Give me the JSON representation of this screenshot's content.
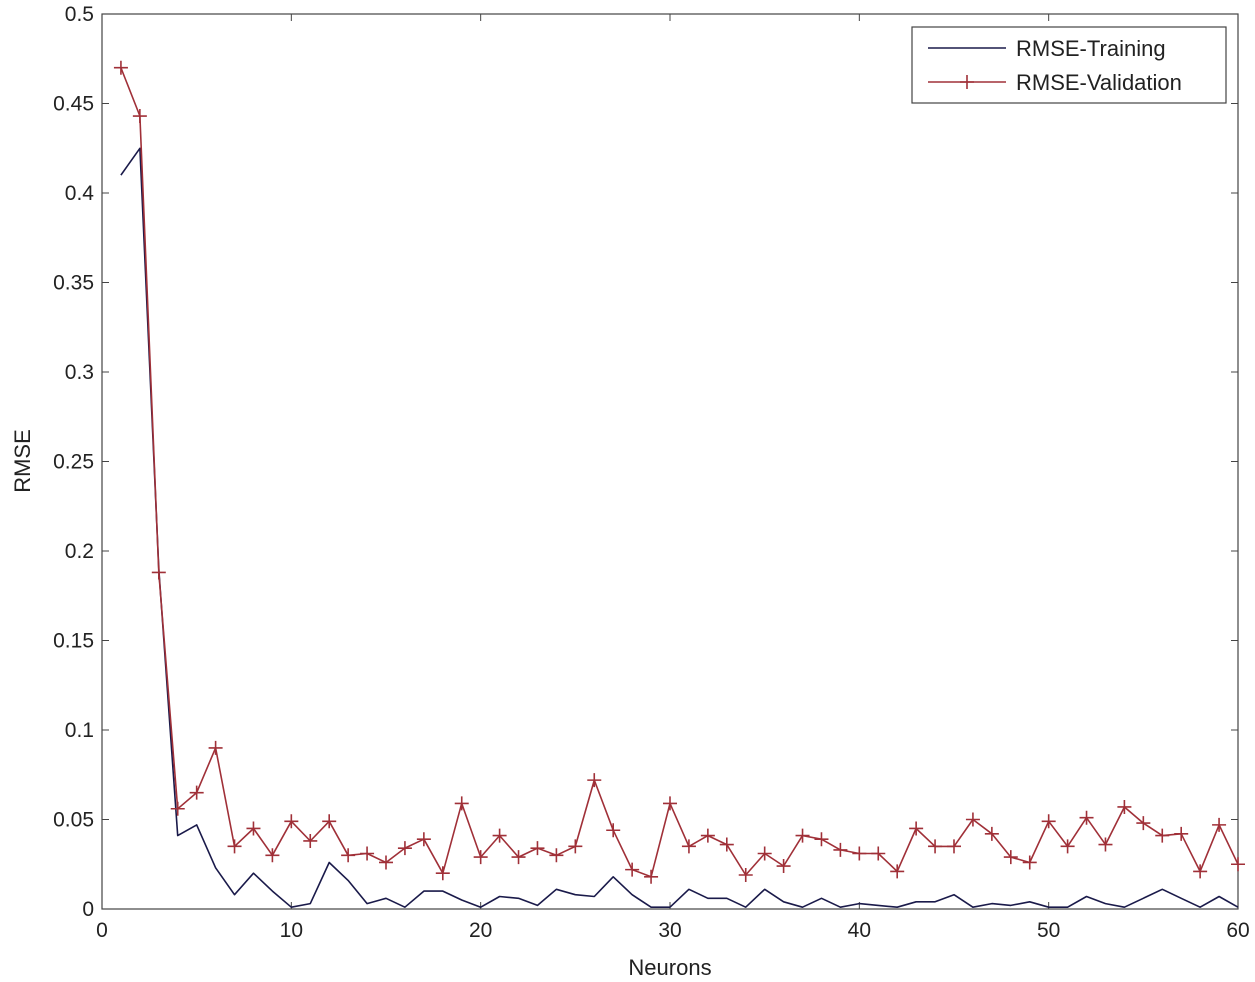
{
  "chart_data": {
    "type": "line",
    "xlabel": "Neurons",
    "ylabel": "RMSE",
    "xlim": [
      0,
      60
    ],
    "ylim": [
      0,
      0.5
    ],
    "xticks": [
      "0",
      "10",
      "20",
      "30",
      "40",
      "50",
      "60"
    ],
    "yticks": [
      "0",
      "0.05",
      "0.1",
      "0.15",
      "0.2",
      "0.25",
      "0.3",
      "0.35",
      "0.4",
      "0.45",
      "0.5"
    ],
    "grid": false,
    "legend_position": "top-right",
    "x": [
      1,
      2,
      3,
      4,
      5,
      6,
      7,
      8,
      9,
      10,
      11,
      12,
      13,
      14,
      15,
      16,
      17,
      18,
      19,
      20,
      21,
      22,
      23,
      24,
      25,
      26,
      27,
      28,
      29,
      30,
      31,
      32,
      33,
      34,
      35,
      36,
      37,
      38,
      39,
      40,
      41,
      42,
      43,
      44,
      45,
      46,
      47,
      48,
      49,
      50,
      51,
      52,
      53,
      54,
      55,
      56,
      57,
      58,
      59,
      60
    ],
    "series": [
      {
        "name": "RMSE-Training",
        "color": "#1a1a4a",
        "marker": "none",
        "values": [
          0.41,
          0.425,
          0.19,
          0.041,
          0.047,
          0.023,
          0.008,
          0.02,
          0.01,
          0.001,
          0.003,
          0.026,
          0.016,
          0.003,
          0.006,
          0.001,
          0.01,
          0.01,
          0.005,
          0.001,
          0.007,
          0.006,
          0.002,
          0.011,
          0.008,
          0.007,
          0.018,
          0.008,
          0.001,
          0.001,
          0.011,
          0.006,
          0.006,
          0.001,
          0.011,
          0.004,
          0.001,
          0.006,
          0.001,
          0.003,
          0.002,
          0.001,
          0.004,
          0.004,
          0.008,
          0.001,
          0.003,
          0.002,
          0.004,
          0.001,
          0.001,
          0.007,
          0.003,
          0.001,
          0.006,
          0.011,
          0.006,
          0.001,
          0.007,
          0.001
        ]
      },
      {
        "name": "RMSE-Validation",
        "color": "#a03038",
        "marker": "plus",
        "values": [
          0.47,
          0.443,
          0.188,
          0.056,
          0.065,
          0.09,
          0.035,
          0.045,
          0.03,
          0.049,
          0.038,
          0.049,
          0.03,
          0.031,
          0.026,
          0.034,
          0.039,
          0.02,
          0.059,
          0.029,
          0.041,
          0.029,
          0.034,
          0.03,
          0.035,
          0.072,
          0.044,
          0.022,
          0.018,
          0.059,
          0.035,
          0.041,
          0.036,
          0.019,
          0.031,
          0.024,
          0.041,
          0.039,
          0.033,
          0.031,
          0.031,
          0.021,
          0.045,
          0.035,
          0.035,
          0.05,
          0.042,
          0.029,
          0.026,
          0.049,
          0.035,
          0.051,
          0.036,
          0.057,
          0.048,
          0.041,
          0.042,
          0.021,
          0.047,
          0.025
        ]
      }
    ]
  }
}
